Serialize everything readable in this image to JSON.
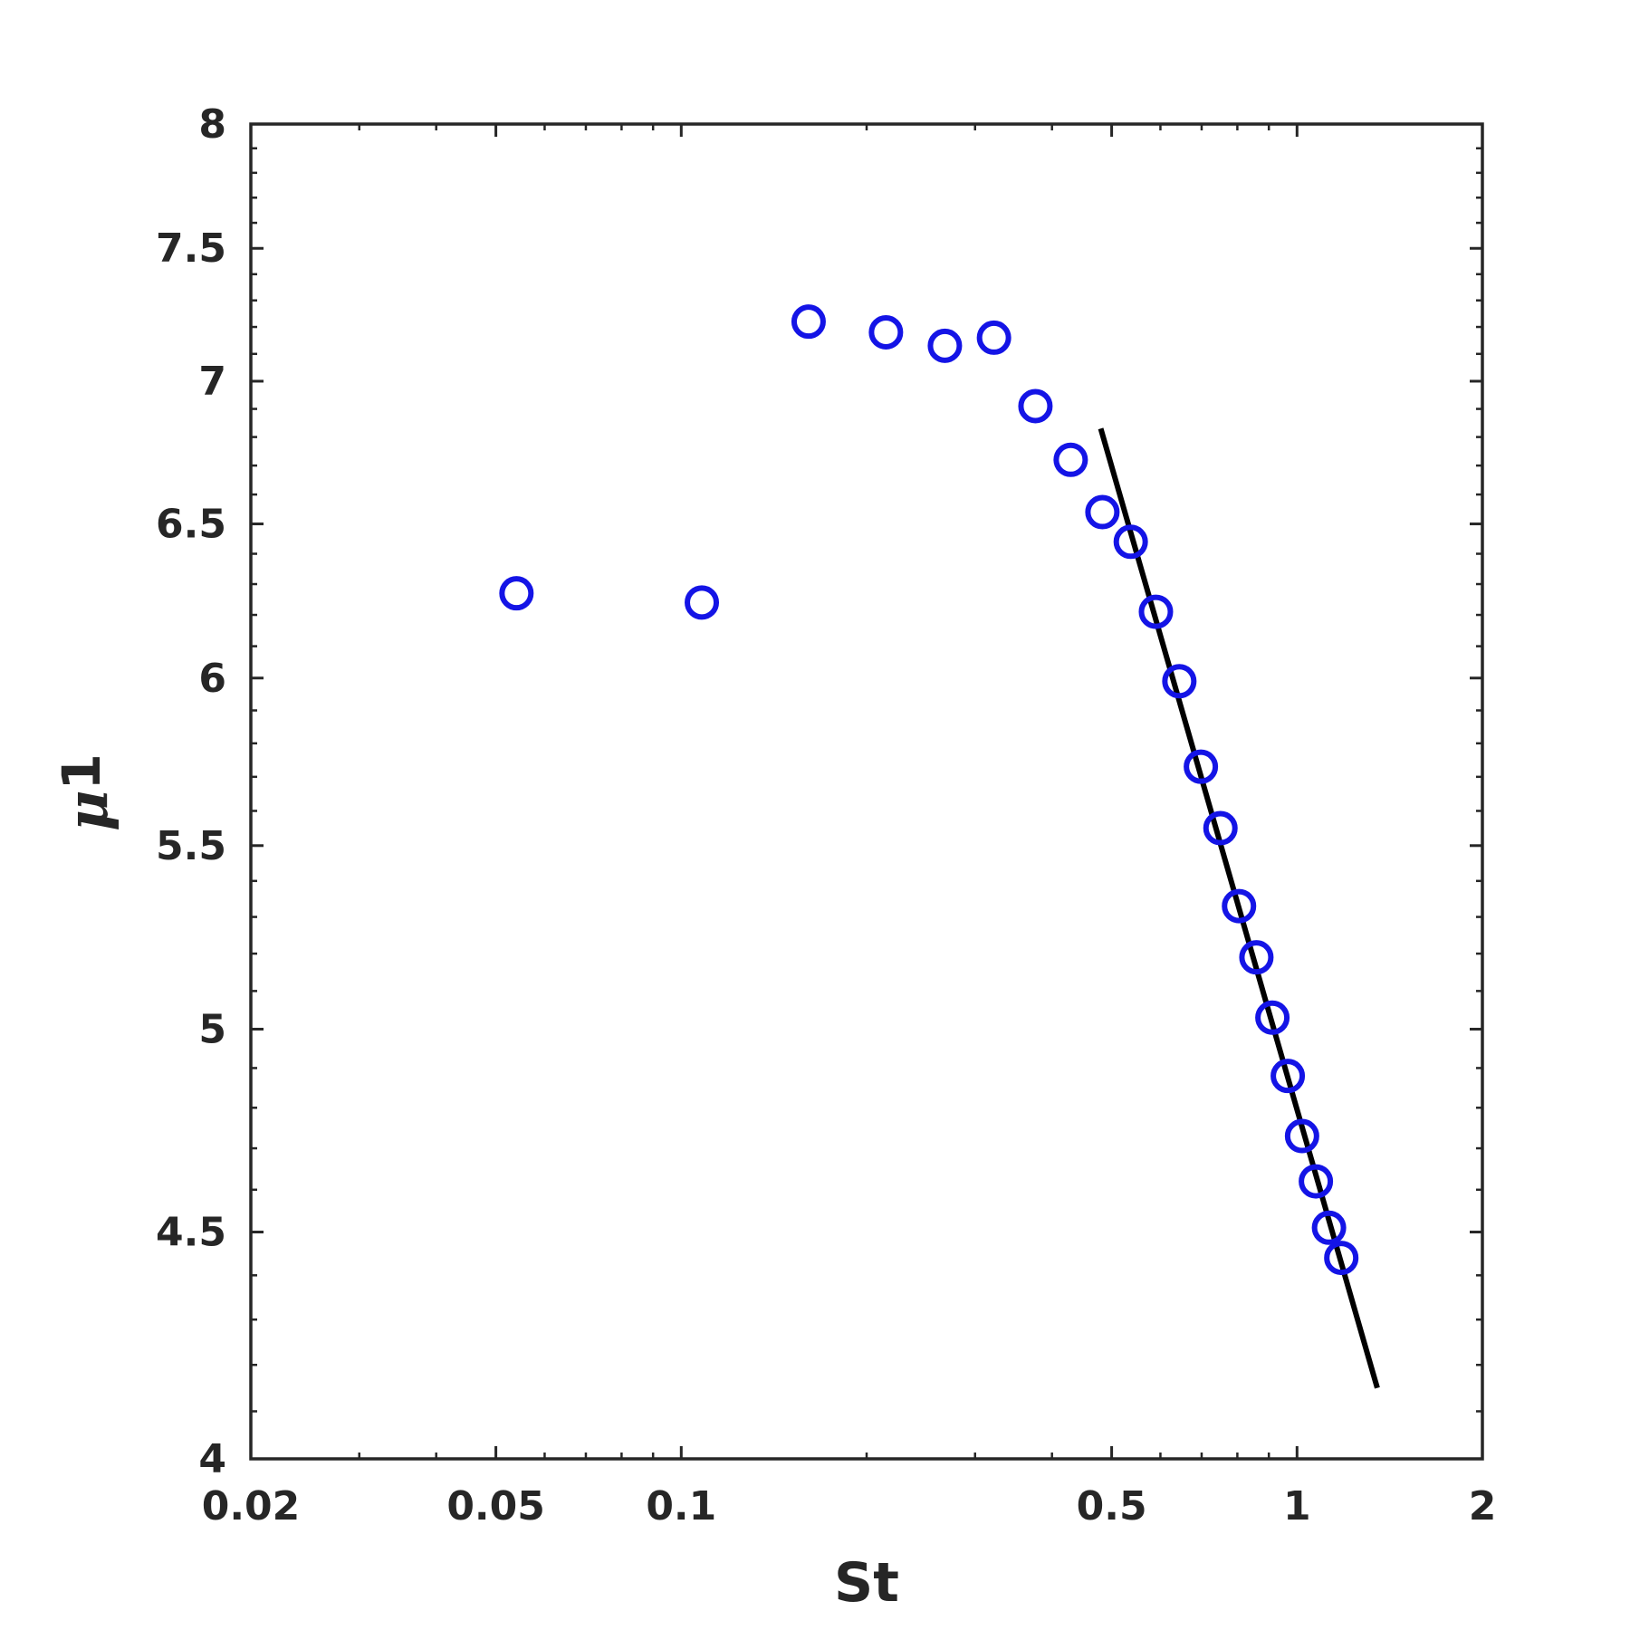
{
  "chart_data": {
    "type": "scatter",
    "xscale": "log",
    "yscale": "log",
    "xlim": [
      0.02,
      2
    ],
    "ylim": [
      4,
      8
    ],
    "xlabel": "St",
    "ylabel": "μ",
    "ylabel_subscript": "1",
    "xticks": [
      0.02,
      0.05,
      0.1,
      0.5,
      1,
      2
    ],
    "xtick_labels": [
      "0.02",
      "0.05",
      "0.1",
      "0.5",
      "1",
      "2"
    ],
    "yticks": [
      4,
      4.5,
      5,
      5.5,
      6,
      6.5,
      7,
      7.5,
      8
    ],
    "ytick_labels": [
      "4",
      "4.5",
      "5",
      "5.5",
      "6",
      "6.5",
      "7",
      "7.5",
      "8"
    ],
    "grid": false,
    "series": [
      {
        "kind": "scatter",
        "marker": "open-circle",
        "color": "#1414e6",
        "x": [
          0.054,
          0.108,
          0.161,
          0.215,
          0.268,
          0.322,
          0.376,
          0.429,
          0.483,
          0.537,
          0.59,
          0.644,
          0.698,
          0.751,
          0.805,
          0.859,
          0.912,
          0.966,
          1.019,
          1.073,
          1.127,
          1.18
        ],
        "y": [
          6.27,
          6.24,
          7.22,
          7.18,
          7.13,
          7.16,
          6.91,
          6.72,
          6.54,
          6.44,
          6.21,
          5.99,
          5.73,
          5.55,
          5.33,
          5.19,
          5.03,
          4.88,
          4.73,
          4.62,
          4.51,
          4.44
        ]
      },
      {
        "kind": "line",
        "color": "#000000",
        "x": [
          0.48,
          1.35
        ],
        "y": [
          6.83,
          4.15
        ]
      }
    ]
  }
}
